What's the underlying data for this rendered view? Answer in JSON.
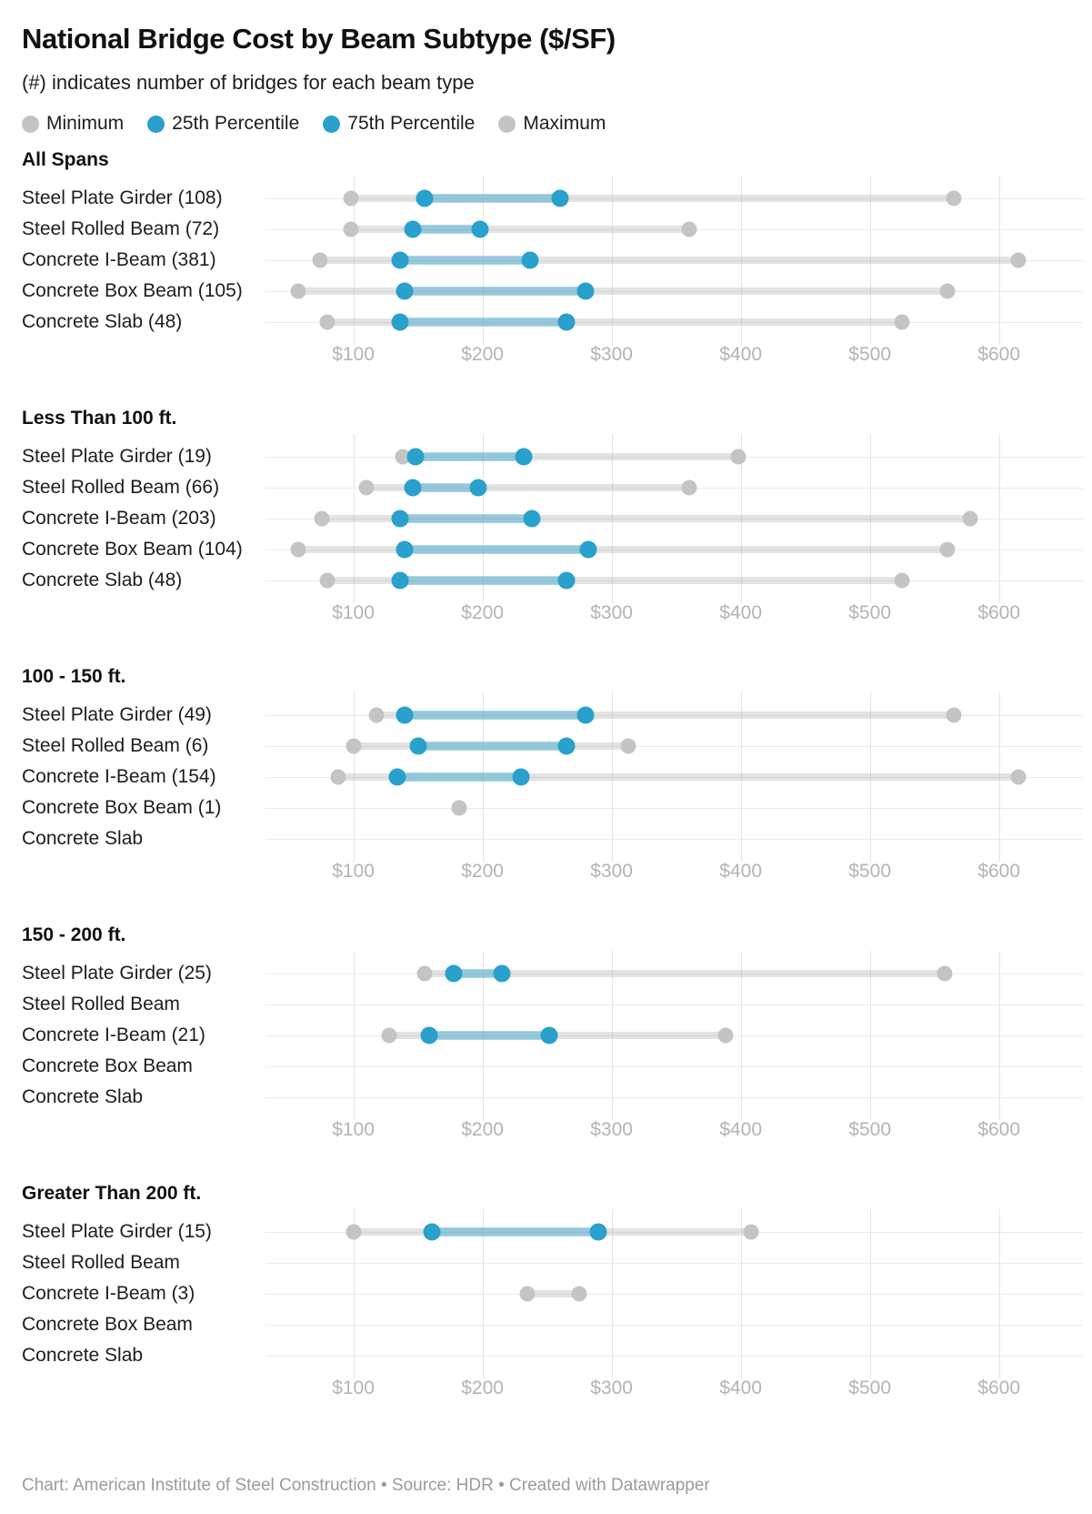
{
  "title": "National Bridge Cost by Beam Subtype ($/SF)",
  "subtitle": "(#) indicates number of bridges for each beam type",
  "legend": {
    "items": [
      {
        "label": "Minimum",
        "type": "gray"
      },
      {
        "label": "25th Percentile",
        "type": "blue"
      },
      {
        "label": "75th Percentile",
        "type": "blue"
      },
      {
        "label": "Maximum",
        "type": "gray"
      }
    ]
  },
  "footer": "Chart: American Institute of Steel Construction • Source: HDR • Created with Datawrapper",
  "colors": {
    "blue_dot": "#2aa0cd",
    "blue_bar": "rgba(42,160,205,0.42)",
    "gray_dot": "#c4c4c5",
    "gray_bar": "rgba(168,168,168,0.32)",
    "grid": "#e4e4e4",
    "baseline": "#ebebeb",
    "axis_text": "#b4b4b4"
  },
  "chart_data": {
    "type": "range-dot plot (min / 25th percentile / 75th percentile / max)",
    "unit": "$/SF",
    "x_domain": [
      32,
      665
    ],
    "x_ticks": [
      {
        "value": 100,
        "label": "$100"
      },
      {
        "value": 200,
        "label": "$200"
      },
      {
        "value": 300,
        "label": "$300"
      },
      {
        "value": 400,
        "label": "$400"
      },
      {
        "value": 500,
        "label": "$500"
      },
      {
        "value": 600,
        "label": "$600"
      }
    ],
    "panels": [
      {
        "heading": "All Spans",
        "rows": [
          {
            "label": "Steel Plate Girder (108)",
            "count": 108,
            "min": 98,
            "q25": 155,
            "q75": 260,
            "max": 565
          },
          {
            "label": "Steel Rolled Beam (72)",
            "count": 72,
            "min": 98,
            "q25": 146,
            "q75": 198,
            "max": 360
          },
          {
            "label": "Concrete I-Beam (381)",
            "count": 381,
            "min": 74,
            "q25": 136,
            "q75": 237,
            "max": 615
          },
          {
            "label": "Concrete Box Beam (105)",
            "count": 105,
            "min": 57,
            "q25": 140,
            "q75": 280,
            "max": 560
          },
          {
            "label": "Concrete Slab (48)",
            "count": 48,
            "min": 80,
            "q25": 136,
            "q75": 265,
            "max": 525
          }
        ]
      },
      {
        "heading": "Less Than 100 ft.",
        "rows": [
          {
            "label": "Steel Plate Girder (19)",
            "count": 19,
            "min": 138,
            "q25": 148,
            "q75": 232,
            "max": 398
          },
          {
            "label": "Steel Rolled Beam (66)",
            "count": 66,
            "min": 110,
            "q25": 146,
            "q75": 197,
            "max": 360
          },
          {
            "label": "Concrete I-Beam (203)",
            "count": 203,
            "min": 76,
            "q25": 136,
            "q75": 238,
            "max": 578
          },
          {
            "label": "Concrete Box Beam (104)",
            "count": 104,
            "min": 57,
            "q25": 140,
            "q75": 282,
            "max": 560
          },
          {
            "label": "Concrete Slab (48)",
            "count": 48,
            "min": 80,
            "q25": 136,
            "q75": 265,
            "max": 525
          }
        ]
      },
      {
        "heading": "100 - 150 ft.",
        "rows": [
          {
            "label": "Steel Plate Girder (49)",
            "count": 49,
            "min": 118,
            "q25": 140,
            "q75": 280,
            "max": 565
          },
          {
            "label": "Steel Rolled Beam (6)",
            "count": 6,
            "min": 100,
            "q25": 150,
            "q75": 265,
            "max": 313
          },
          {
            "label": "Concrete I-Beam (154)",
            "count": 154,
            "min": 88,
            "q25": 134,
            "q75": 230,
            "max": 615
          },
          {
            "label": "Concrete Box Beam (1)",
            "count": 1,
            "min": 182,
            "q25": null,
            "q75": null,
            "max": 182
          },
          {
            "label": "Concrete Slab",
            "count": null,
            "min": null,
            "q25": null,
            "q75": null,
            "max": null
          }
        ]
      },
      {
        "heading": "150 - 200 ft.",
        "rows": [
          {
            "label": "Steel Plate Girder (25)",
            "count": 25,
            "min": 155,
            "q25": 178,
            "q75": 215,
            "max": 558
          },
          {
            "label": "Steel Rolled Beam",
            "count": null,
            "min": null,
            "q25": null,
            "q75": null,
            "max": null
          },
          {
            "label": "Concrete I-Beam (21)",
            "count": 21,
            "min": 128,
            "q25": 159,
            "q75": 252,
            "max": 388
          },
          {
            "label": "Concrete Box Beam",
            "count": null,
            "min": null,
            "q25": null,
            "q75": null,
            "max": null
          },
          {
            "label": "Concrete Slab",
            "count": null,
            "min": null,
            "q25": null,
            "q75": null,
            "max": null
          }
        ]
      },
      {
        "heading": "Greater Than 200 ft.",
        "rows": [
          {
            "label": "Steel Plate Girder (15)",
            "count": 15,
            "min": 100,
            "q25": 161,
            "q75": 290,
            "max": 408
          },
          {
            "label": "Steel Rolled Beam",
            "count": null,
            "min": null,
            "q25": null,
            "q75": null,
            "max": null
          },
          {
            "label": "Concrete I-Beam (3)",
            "count": 3,
            "min": 235,
            "q25": null,
            "q75": null,
            "max": 275
          },
          {
            "label": "Concrete Box Beam",
            "count": null,
            "min": null,
            "q25": null,
            "q75": null,
            "max": null
          },
          {
            "label": "Concrete Slab",
            "count": null,
            "min": null,
            "q25": null,
            "q75": null,
            "max": null
          }
        ]
      }
    ]
  }
}
